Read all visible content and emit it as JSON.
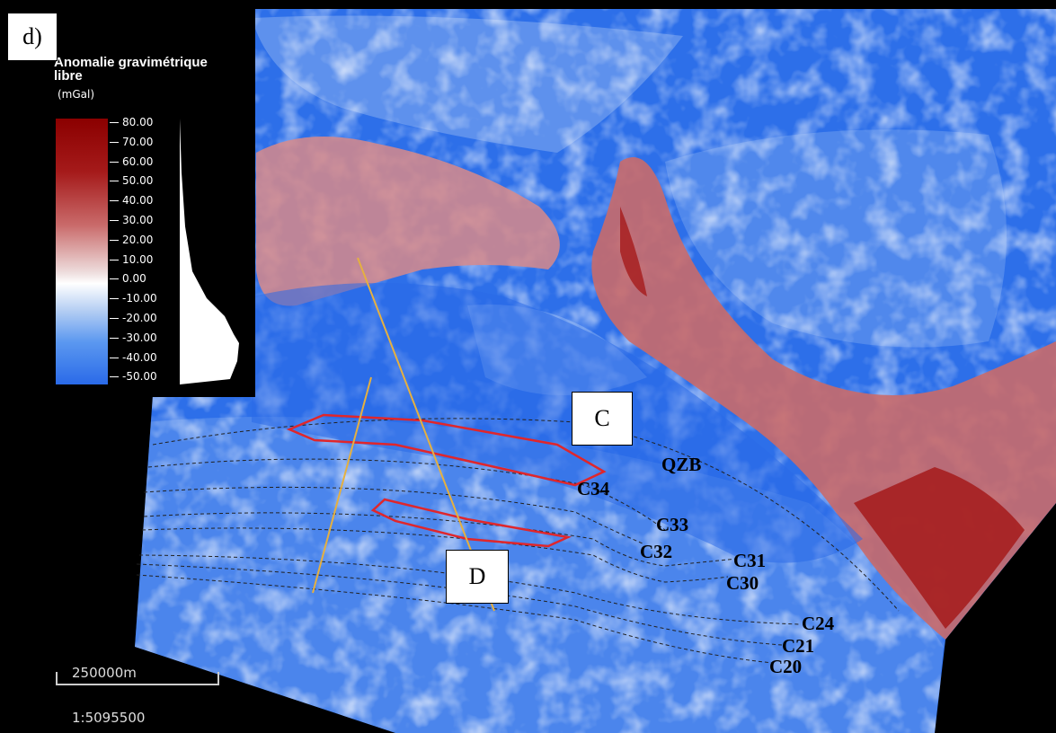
{
  "panel_label": "d)",
  "legend": {
    "title_line1": "Anomalie gravimétrique",
    "title_line2": "libre",
    "unit": "(mGal)",
    "ticks": [
      "80.00",
      "70.00",
      "60.00",
      "50.00",
      "40.00",
      "30.00",
      "20.00",
      "10.00",
      "0.00",
      "-10.00",
      "-20.00",
      "-30.00",
      "-40.00",
      "-50.00"
    ],
    "colors": {
      "high": "#8b0000",
      "zero": "#ffffff",
      "low": "#2a6ae8"
    }
  },
  "profiles": [
    {
      "label": "C"
    },
    {
      "label": "D"
    }
  ],
  "features": {
    "basin_label": "QZB",
    "chrons": [
      "C34",
      "C33",
      "C32",
      "C31",
      "C30",
      "C24",
      "C21",
      "C20"
    ]
  },
  "scale": {
    "bar_label": "250000m",
    "ratio": "1:5095500"
  },
  "colors": {
    "zone_outline": "#e0262b",
    "profile_line": "#e5b040",
    "isochron": "#222222"
  }
}
